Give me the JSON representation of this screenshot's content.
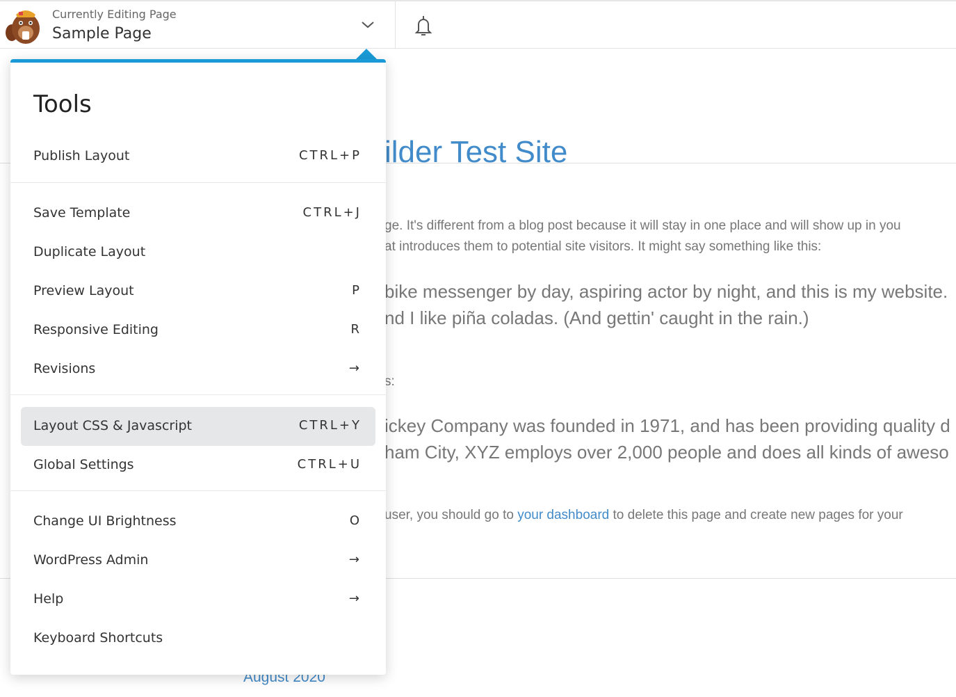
{
  "header": {
    "subtitle": "Currently Editing Page",
    "page_name": "Sample Page",
    "logo": "beaver-logo",
    "chevron_icon": "chevron-down-icon",
    "bell_icon": "bell-icon"
  },
  "background_page": {
    "site_title": "ilder Test Site",
    "lines": [
      "ge. It's different from a blog post because it will stay in one place and will show up in you",
      "at introduces them to potential site visitors. It might say something like this:"
    ],
    "quote1": [
      "bike messenger by day, aspiring actor by night, and this is my website.",
      "nd I like piña coladas. (And gettin' caught in the rain.)"
    ],
    "s_colon": "s:",
    "quote2": [
      "ickey Company was founded in 1971, and has been providing quality d",
      "ham City, XYZ employs over 2,000 people and does all kinds of aweso"
    ],
    "final_pre": "user, you should go to ",
    "final_link": "your dashboard",
    "final_post": " to delete this page and create new pages for your",
    "archive_link": "August 2020",
    "title_color": "#428bca"
  },
  "menu": {
    "title": "Tools",
    "accent": "#1a9bd7",
    "items": [
      {
        "label": "Publish Layout",
        "shortcut": "CTRL+P"
      },
      {
        "label": "Save Template",
        "shortcut": "CTRL+J"
      },
      {
        "label": "Duplicate Layout",
        "shortcut": ""
      },
      {
        "label": "Preview Layout",
        "shortcut": "P"
      },
      {
        "label": "Responsive Editing",
        "shortcut": "R"
      },
      {
        "label": "Revisions",
        "shortcut": "→"
      },
      {
        "label": "Layout CSS & Javascript",
        "shortcut": "CTRL+Y"
      },
      {
        "label": "Global Settings",
        "shortcut": "CTRL+U"
      },
      {
        "label": "Change UI Brightness",
        "shortcut": "O"
      },
      {
        "label": "WordPress Admin",
        "shortcut": "→"
      },
      {
        "label": "Help",
        "shortcut": "→"
      },
      {
        "label": "Keyboard Shortcuts",
        "shortcut": ""
      }
    ]
  }
}
